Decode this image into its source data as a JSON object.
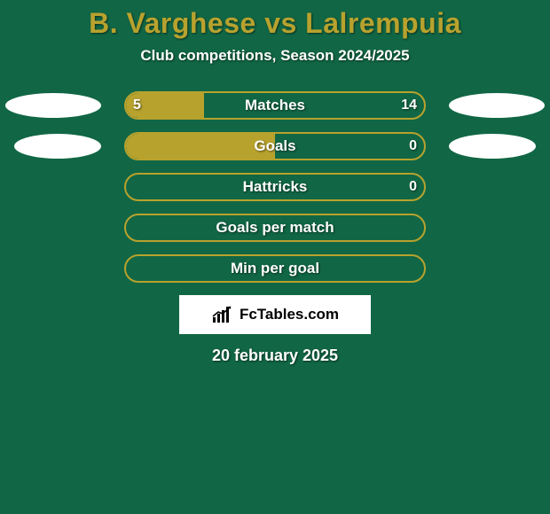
{
  "background_color": "#116745",
  "title_color": "#b8a22e",
  "text_color": "#ffffff",
  "header": {
    "title": "B. Varghese vs Lalrempuia",
    "subtitle": "Club competitions, Season 2024/2025"
  },
  "rows": [
    {
      "label": "Matches",
      "left_value": "5",
      "right_value": "14",
      "left_pct": 26.3,
      "border_color": "#b8a22e",
      "fill_color": "#b8a22e",
      "show_values": true,
      "show_left_ellipse": true,
      "show_right_ellipse": true,
      "ellipse_variant": 1
    },
    {
      "label": "Goals",
      "left_value": "",
      "right_value": "0",
      "left_pct": 50,
      "border_color": "#b8a22e",
      "fill_color": "#b8a22e",
      "show_values": true,
      "show_left_ellipse": true,
      "show_right_ellipse": true,
      "ellipse_variant": 2
    },
    {
      "label": "Hattricks",
      "left_value": "",
      "right_value": "0",
      "left_pct": 0,
      "border_color": "#b8a22e",
      "fill_color": "#b8a22e",
      "show_values": true,
      "show_left_ellipse": false,
      "show_right_ellipse": false,
      "ellipse_variant": 0
    },
    {
      "label": "Goals per match",
      "left_value": "",
      "right_value": "",
      "left_pct": 0,
      "border_color": "#b8a22e",
      "fill_color": "#b8a22e",
      "show_values": false,
      "show_left_ellipse": false,
      "show_right_ellipse": false,
      "ellipse_variant": 0
    },
    {
      "label": "Min per goal",
      "left_value": "",
      "right_value": "",
      "left_pct": 0,
      "border_color": "#b8a22e",
      "fill_color": "#b8a22e",
      "show_values": false,
      "show_left_ellipse": false,
      "show_right_ellipse": false,
      "ellipse_variant": 0
    }
  ],
  "brand": {
    "name": "FcTables.com",
    "icon_color": "#000000"
  },
  "date": "20 february 2025"
}
